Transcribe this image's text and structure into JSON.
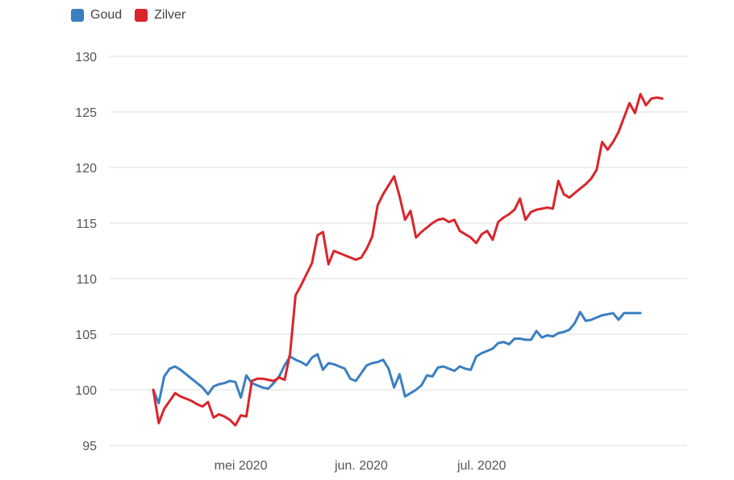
{
  "legend": [
    {
      "label": "Goud",
      "color": "#3a7fc1"
    },
    {
      "label": "Zilver",
      "color": "#d9252b"
    }
  ],
  "chart_data": {
    "type": "line",
    "title": "",
    "xlabel": "",
    "ylabel": "",
    "ylim": [
      95,
      130
    ],
    "yticks": [
      "130",
      "125",
      "120",
      "115",
      "110",
      "105",
      "100",
      "95"
    ],
    "xticks": [
      "mei 2020",
      "jun. 2020",
      "jul. 2020"
    ],
    "grid": true,
    "legend_position": "top-left",
    "series": [
      {
        "name": "Goud",
        "color": "#3a7fc1",
        "values": [
          100,
          98.8,
          101.2,
          101.9,
          102.1,
          101.8,
          101.4,
          101,
          100.6,
          100.2,
          99.6,
          100.3,
          100.5,
          100.6,
          100.8,
          100.7,
          99.3,
          101.3,
          100.6,
          100.4,
          100.2,
          100.1,
          100.6,
          101.2,
          102.2,
          103.0,
          102.7,
          102.5,
          102.2,
          102.9,
          103.2,
          101.8,
          102.4,
          102.3,
          102.1,
          101.9,
          101.0,
          100.8,
          101.5,
          102.2,
          102.4,
          102.5,
          102.7,
          101.9,
          100.2,
          101.4,
          99.4,
          99.7,
          100.0,
          100.4,
          101.3,
          101.2,
          102.0,
          102.1,
          101.9,
          101.7,
          102.1,
          101.9,
          101.8,
          103.0,
          103.3,
          103.5,
          103.7,
          104.2,
          104.3,
          104.1,
          104.6,
          104.6,
          104.5,
          104.5,
          105.3,
          104.7,
          104.9,
          104.8,
          105.1,
          105.2,
          105.4,
          106.0,
          107.0,
          106.2,
          106.3,
          106.5,
          106.7,
          106.8,
          106.9,
          106.3,
          106.9,
          106.9,
          106.9,
          106.9
        ],
        "start_date": "2020-04-15"
      },
      {
        "name": "Zilver",
        "color": "#d9252b",
        "values": [
          100,
          97.0,
          98.3,
          99.0,
          99.7,
          99.4,
          99.2,
          99.0,
          98.7,
          98.5,
          98.9,
          97.5,
          97.8,
          97.6,
          97.3,
          96.8,
          97.7,
          97.6,
          100.8,
          101.0,
          101.0,
          100.9,
          100.8,
          101.1,
          100.9,
          103.3,
          108.5,
          109.4,
          110.4,
          111.4,
          113.9,
          114.2,
          111.3,
          112.5,
          112.3,
          112.1,
          111.9,
          111.7,
          111.9,
          112.7,
          113.8,
          116.6,
          117.6,
          118.4,
          119.2,
          117.4,
          115.3,
          116.1,
          113.7,
          114.2,
          114.6,
          115.0,
          115.3,
          115.4,
          115.1,
          115.3,
          114.3,
          114.0,
          113.7,
          113.2,
          114.0,
          114.3,
          113.5,
          115.1,
          115.5,
          115.8,
          116.2,
          117.2,
          115.3,
          116.0,
          116.2,
          116.3,
          116.4,
          116.3,
          118.8,
          117.6,
          117.3,
          117.7,
          118.1,
          118.5,
          119.0,
          119.8,
          122.3,
          121.6,
          122.3,
          123.2,
          124.5,
          125.8,
          124.9,
          126.6,
          125.6,
          126.2,
          126.3,
          126.2
        ]
      }
    ]
  }
}
